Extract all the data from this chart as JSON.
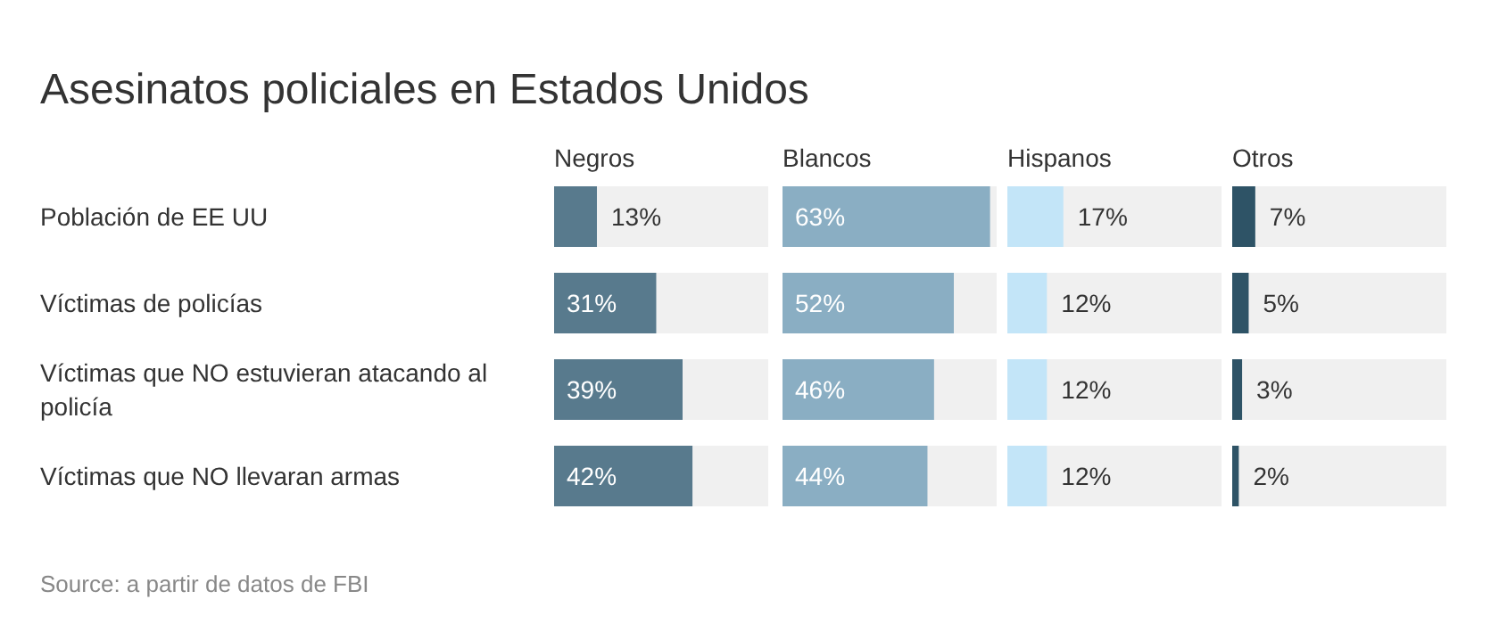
{
  "chart_data": [
    {
      "type": "bar",
      "orientation": "horizontal",
      "title": "Asesinatos policiales en Estados Unidos",
      "categories": [
        "Población de EE UU",
        "Víctimas de policías",
        "Víctimas que NO estuvieran atacando al policía",
        "Víctimas que NO llevaran armas"
      ],
      "xlim": [
        0,
        65
      ],
      "series": [
        {
          "name": "Negros",
          "color": "#587a8d",
          "values": [
            13,
            31,
            39,
            42
          ],
          "value_labels": [
            "13%",
            "31%",
            "39%",
            "42%"
          ]
        }
      ],
      "annotations": [
        "Source: a partir de datos de FBI"
      ]
    },
    {
      "type": "bar",
      "orientation": "horizontal",
      "categories": [
        null,
        null,
        null,
        null
      ],
      "xlim": [
        0,
        65
      ],
      "series": [
        {
          "name": "Blancos",
          "color": "#8aaec3",
          "values": [
            63,
            52,
            46,
            44
          ],
          "value_labels": [
            "63%",
            "52%",
            "46%",
            "44%"
          ]
        }
      ]
    },
    {
      "type": "bar",
      "orientation": "horizontal",
      "categories": [
        null,
        null,
        null,
        null
      ],
      "xlim": [
        0,
        65
      ],
      "series": [
        {
          "name": "Hispanos",
          "color": "#c3e5f8",
          "values": [
            17,
            12,
            12,
            12
          ],
          "value_labels": [
            "17%",
            "12%",
            "12%",
            "12%"
          ]
        }
      ]
    },
    {
      "type": "bar",
      "orientation": "horizontal",
      "categories": [
        null,
        null,
        null,
        null
      ],
      "xlim": [
        0,
        65
      ],
      "series": [
        {
          "name": "Otros",
          "color": "#2e5366",
          "values": [
            7,
            5,
            3,
            2
          ],
          "value_labels": [
            "7%",
            "5%",
            "3%",
            "2%"
          ]
        }
      ]
    }
  ]
}
